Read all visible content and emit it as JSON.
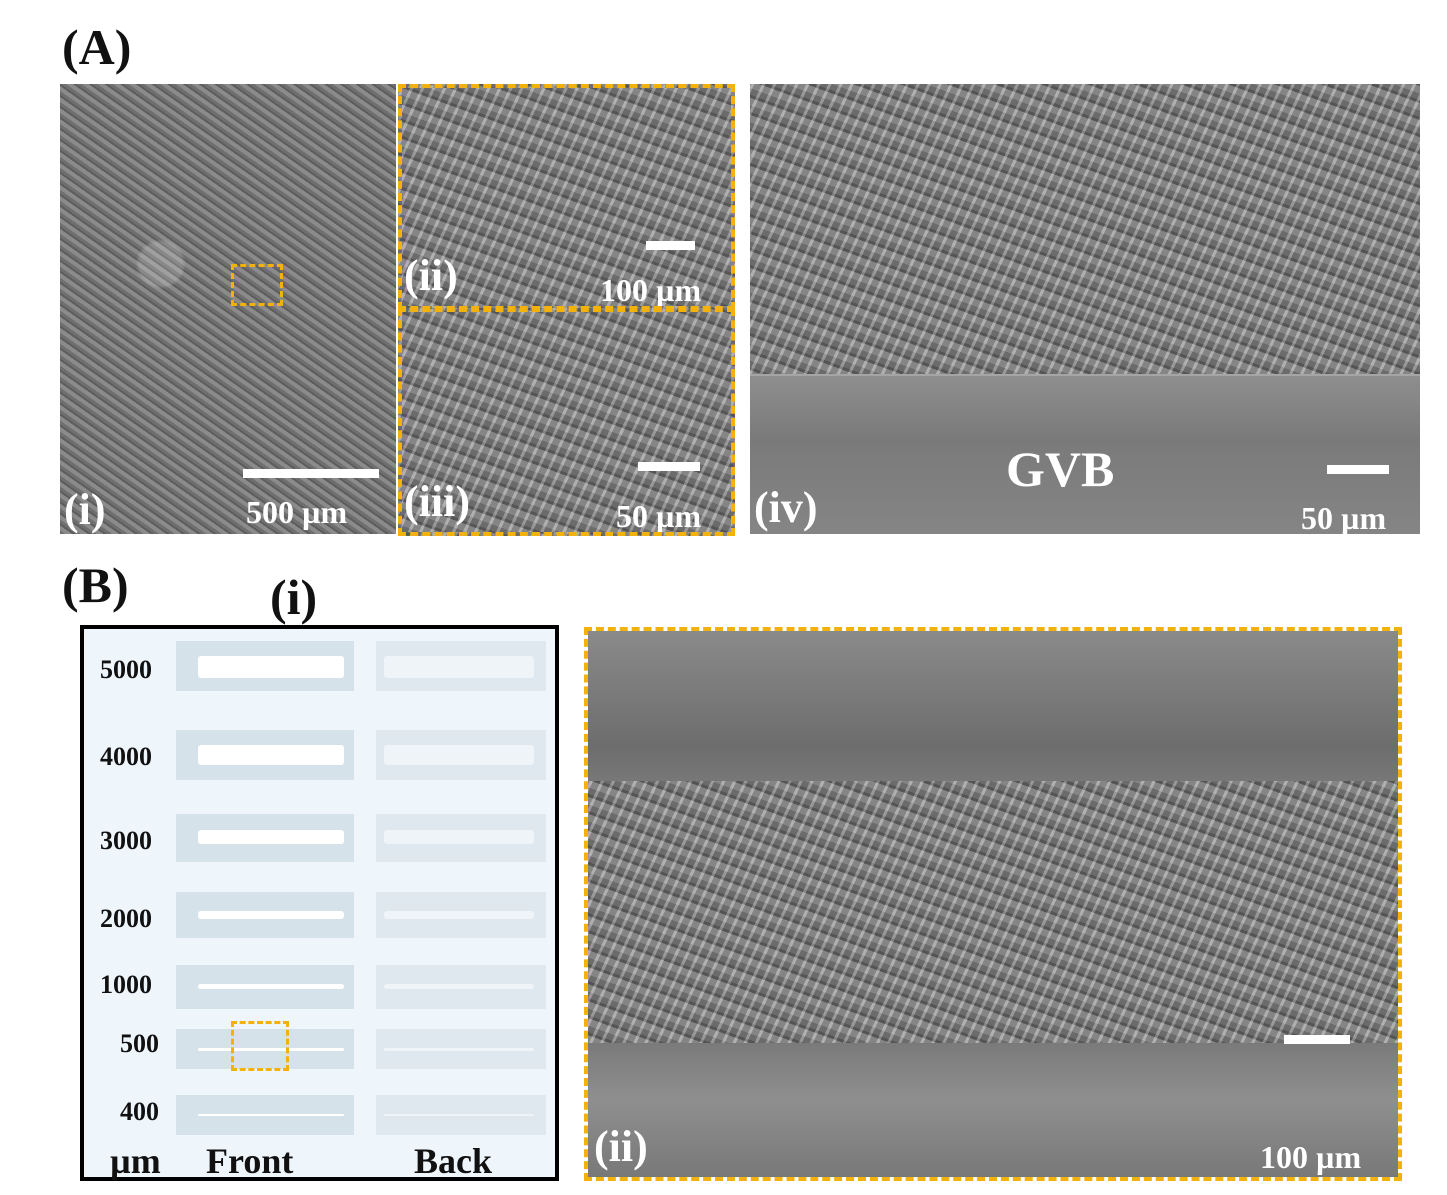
{
  "panel_a": {
    "letter": "(A)",
    "sub_i": {
      "label": "(i)",
      "scale": "500 µm"
    },
    "sub_ii": {
      "label": "(ii)",
      "scale": "100 µm"
    },
    "sub_iii": {
      "label": "(iii)",
      "scale": "50 µm"
    },
    "sub_iv": {
      "label": "(iv)",
      "scale": "50 µm",
      "region_label": "GVB"
    }
  },
  "panel_b": {
    "letter": "(B)",
    "sub_i": {
      "label": "(i)",
      "widths": [
        "5000",
        "4000",
        "3000",
        "2000",
        "1000",
        "500",
        "400"
      ],
      "unit": "µm",
      "front_label": "Front",
      "back_label": "Back"
    },
    "sub_ii": {
      "label": "(ii)",
      "scale": "100 µm"
    }
  },
  "colors": {
    "highlight": "#f2b10b",
    "frame": "#000000"
  }
}
